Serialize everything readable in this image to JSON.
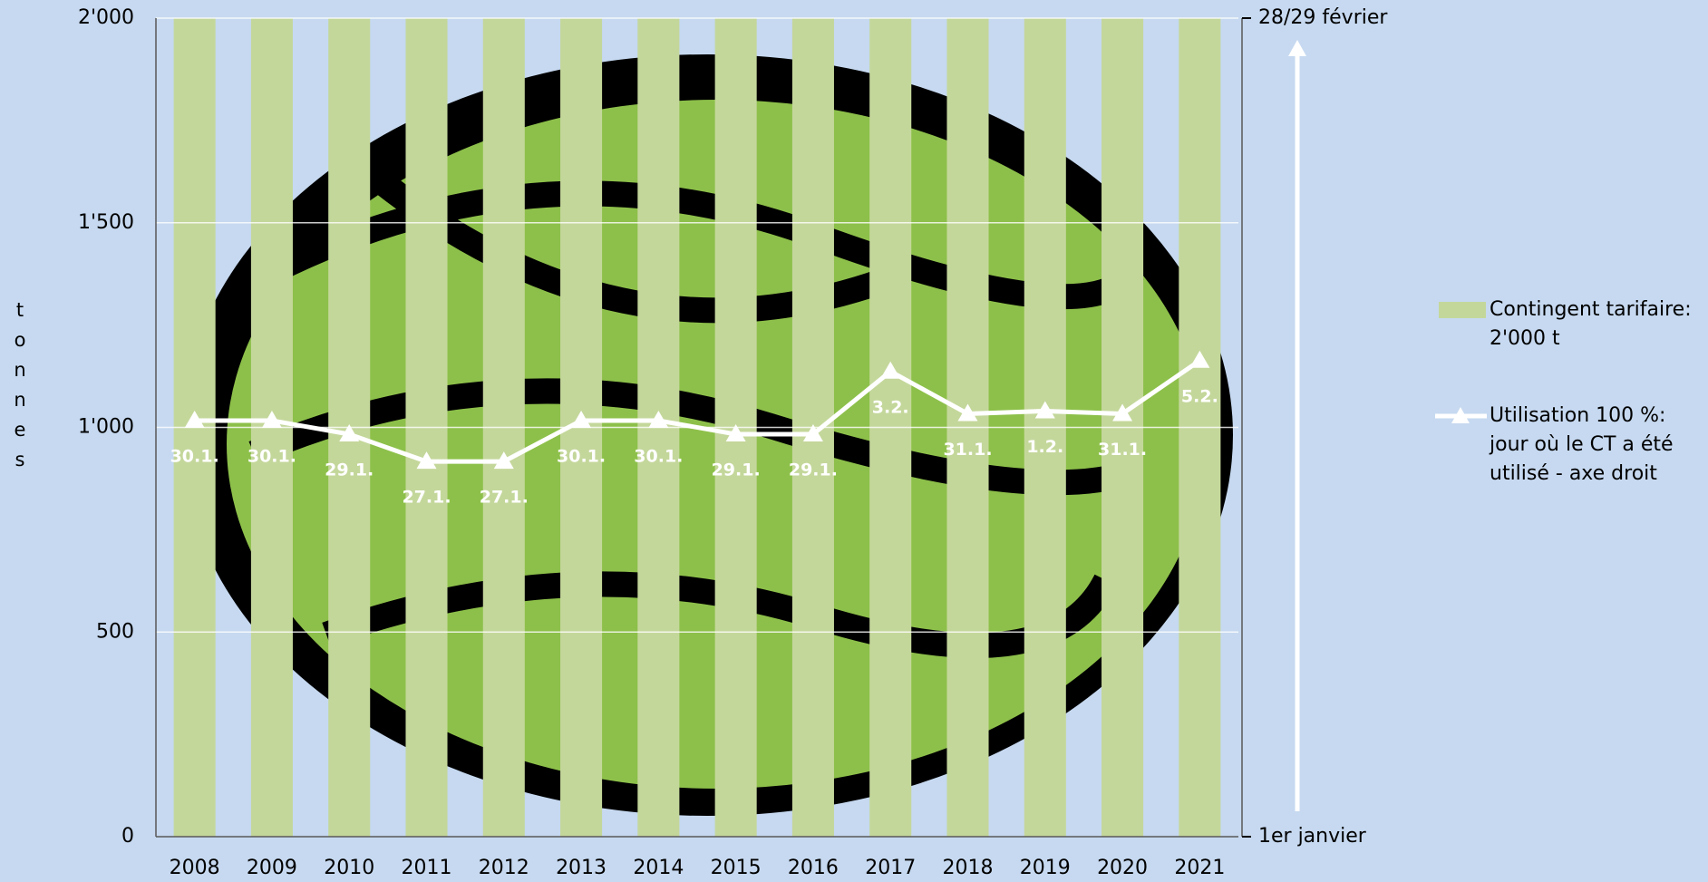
{
  "chart_data": {
    "type": "bar_line",
    "y_axis_label": "tonnes",
    "categories": [
      "2008",
      "2009",
      "2010",
      "2011",
      "2012",
      "2013",
      "2014",
      "2015",
      "2016",
      "2017",
      "2018",
      "2019",
      "2020",
      "2021"
    ],
    "series": [
      {
        "name": "Contingent tarifaire: 2'000 t",
        "type": "bar",
        "color": "#c4d79b",
        "values": [
          2000,
          2000,
          2000,
          2000,
          2000,
          2000,
          2000,
          2000,
          2000,
          2000,
          2000,
          2000,
          2000,
          2000
        ]
      },
      {
        "name": "Utilisation 100 %: jour où le CT a été utilisé - axe droit",
        "type": "line",
        "axis": "y2",
        "color": "#ffffff",
        "values": [
          30.5,
          30.5,
          29.5,
          27.5,
          27.5,
          30.5,
          30.5,
          29.5,
          29.5,
          34.1,
          31.0,
          31.2,
          31.0,
          34.9
        ],
        "value_labels": [
          "30.1.",
          "30.1.",
          "29.1.",
          "27.1.",
          "27.1.",
          "30.1.",
          "30.1.",
          "29.1.",
          "29.1.",
          "3.2.",
          "31.1.",
          "1.2.",
          "31.1.",
          "5.2."
        ]
      }
    ],
    "ylim": [
      0,
      2000
    ],
    "yticks": [
      0,
      500,
      {
        "value": 1000,
        "label": "1'000"
      },
      {
        "value": 1500,
        "label": "1'500"
      },
      {
        "value": 2000,
        "label": "2'000"
      }
    ],
    "y2lim": [
      0,
      60
    ],
    "y2ticks": [
      {
        "value": 0,
        "label": "1er janvier"
      },
      {
        "value": 60,
        "label": "28/29 février"
      }
    ],
    "grid": true,
    "legend": "right"
  }
}
